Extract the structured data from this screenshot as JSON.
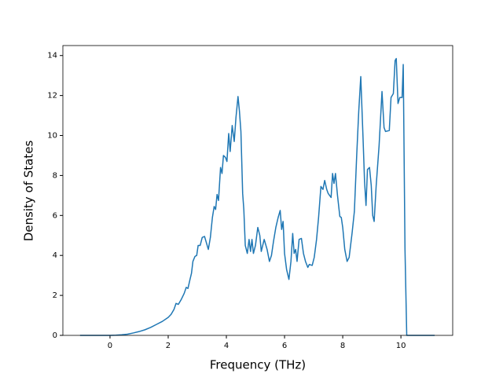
{
  "chart_data": {
    "type": "line",
    "xlabel": "Frequency (THz)",
    "ylabel": "Density of States",
    "x": [
      -1.03,
      -0.5,
      0,
      0.2,
      0.4,
      0.6,
      0.8,
      1.0,
      1.2,
      1.4,
      1.6,
      1.8,
      2.0,
      2.1,
      2.2,
      2.27,
      2.35,
      2.45,
      2.55,
      2.62,
      2.68,
      2.75,
      2.8,
      2.85,
      2.92,
      2.98,
      3.03,
      3.1,
      3.17,
      3.25,
      3.38,
      3.45,
      3.52,
      3.58,
      3.63,
      3.68,
      3.73,
      3.8,
      3.85,
      3.9,
      3.97,
      4.02,
      4.08,
      4.13,
      4.2,
      4.27,
      4.33,
      4.4,
      4.45,
      4.5,
      4.56,
      4.6,
      4.65,
      4.72,
      4.78,
      4.83,
      4.88,
      4.93,
      5.0,
      5.08,
      5.15,
      5.2,
      5.3,
      5.4,
      5.48,
      5.55,
      5.62,
      5.7,
      5.78,
      5.85,
      5.9,
      5.95,
      6.0,
      6.07,
      6.15,
      6.22,
      6.28,
      6.33,
      6.38,
      6.43,
      6.5,
      6.58,
      6.65,
      6.72,
      6.8,
      6.85,
      6.95,
      7.02,
      7.1,
      7.17,
      7.25,
      7.32,
      7.38,
      7.45,
      7.5,
      7.6,
      7.65,
      7.7,
      7.75,
      7.82,
      7.9,
      7.95,
      8.0,
      8.07,
      8.15,
      8.22,
      8.32,
      8.4,
      8.48,
      8.55,
      8.62,
      8.7,
      8.75,
      8.8,
      8.85,
      8.92,
      8.98,
      9.03,
      9.08,
      9.15,
      9.25,
      9.35,
      9.42,
      9.47,
      9.6,
      9.66,
      9.74,
      9.8,
      9.84,
      9.9,
      9.96,
      10.04,
      10.08,
      10.14,
      10.2,
      10.5,
      11.16
    ],
    "values": [
      0,
      0,
      0,
      0.01,
      0.03,
      0.06,
      0.12,
      0.19,
      0.28,
      0.4,
      0.55,
      0.7,
      0.9,
      1.05,
      1.3,
      1.6,
      1.55,
      1.8,
      2.1,
      2.4,
      2.35,
      2.8,
      3.1,
      3.7,
      3.95,
      4.0,
      4.5,
      4.5,
      4.9,
      4.95,
      4.3,
      4.9,
      5.9,
      6.45,
      6.3,
      7.05,
      6.75,
      8.4,
      8.1,
      9.0,
      8.9,
      8.7,
      10.1,
      9.2,
      10.5,
      9.7,
      10.9,
      11.95,
      11.2,
      10.2,
      7.1,
      6.3,
      4.5,
      4.1,
      4.8,
      4.2,
      4.8,
      4.1,
      4.5,
      5.4,
      5.0,
      4.2,
      4.8,
      4.3,
      3.7,
      4.0,
      4.7,
      5.4,
      5.9,
      6.25,
      5.3,
      5.7,
      4.1,
      3.3,
      2.8,
      3.7,
      5.1,
      4.1,
      4.3,
      3.7,
      4.8,
      4.85,
      4.1,
      3.7,
      3.4,
      3.55,
      3.5,
      3.9,
      4.8,
      5.9,
      7.45,
      7.3,
      7.75,
      7.3,
      7.1,
      6.9,
      8.1,
      7.6,
      8.1,
      7.0,
      5.95,
      5.9,
      5.4,
      4.3,
      3.7,
      3.9,
      5.1,
      6.2,
      9.0,
      11.2,
      12.95,
      9.8,
      7.7,
      6.5,
      8.3,
      8.4,
      7.5,
      6.0,
      5.7,
      7.5,
      9.5,
      12.2,
      10.4,
      10.2,
      10.25,
      11.9,
      12.1,
      13.75,
      13.85,
      11.6,
      11.9,
      11.9,
      13.55,
      4.3,
      0,
      0,
      0
    ],
    "color": "#1f77b4",
    "xlim": [
      -1.62,
      11.78
    ],
    "xticks": [
      0,
      2,
      4,
      6,
      8,
      10
    ],
    "ylim": [
      0,
      14.5
    ],
    "yticks": [
      0,
      2,
      4,
      6,
      8,
      10,
      12,
      14
    ]
  }
}
